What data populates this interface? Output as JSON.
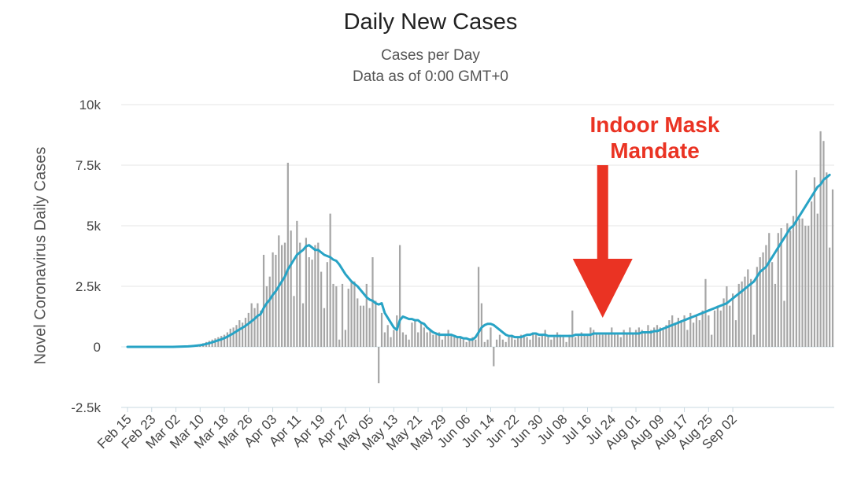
{
  "chart_data": {
    "type": "bar",
    "title": "Daily New Cases",
    "subtitle_lines": [
      "Cases per Day",
      "Data as of 0:00 GMT+0"
    ],
    "ylabel": "Novel Coronavirus Daily Cases",
    "xlabel": "",
    "ylim": [
      -2500,
      10000
    ],
    "y_ticks": [
      "-2.5k",
      "0",
      "2.5k",
      "5k",
      "7.5k",
      "10k"
    ],
    "y_tick_values": [
      -2500,
      0,
      2500,
      5000,
      7500,
      10000
    ],
    "x_ticks": [
      "Feb 15",
      "Feb 23",
      "Mar 02",
      "Mar 10",
      "Mar 18",
      "Mar 26",
      "Apr 03",
      "Apr 11",
      "Apr 19",
      "Apr 27",
      "May 05",
      "May 13",
      "May 21",
      "May 29",
      "Jun 06",
      "Jun 14",
      "Jun 22",
      "Jun 30",
      "Jul 08",
      "Jul 16",
      "Jul 24",
      "Aug 01",
      "Aug 09",
      "Aug 17",
      "Aug 25",
      "Sep 02"
    ],
    "tick_step_days": 8,
    "grid": true,
    "legend": "none",
    "colors": {
      "bars": "#a6a6a6",
      "line": "#27a3c5",
      "annotation": "#ea3323",
      "grid": "#e6e6e6",
      "zero_line": "#d8e8ee"
    },
    "annotation": {
      "text_lines": [
        "Indoor Mask",
        "Mandate"
      ],
      "x": "Jul 21"
    },
    "series": [
      {
        "type": "bar",
        "values": [
          0,
          0,
          0,
          0,
          0,
          0,
          0,
          0,
          0,
          0,
          0,
          0,
          0,
          0,
          0,
          0,
          5,
          10,
          15,
          20,
          30,
          40,
          60,
          80,
          100,
          150,
          200,
          250,
          300,
          350,
          400,
          450,
          500,
          600,
          750,
          800,
          900,
          1100,
          1000,
          1200,
          1400,
          1800,
          1600,
          1800,
          1500,
          3800,
          2500,
          2900,
          3900,
          3800,
          4600,
          4200,
          4300,
          7600,
          4800,
          2100,
          5200,
          4300,
          1800,
          4500,
          3700,
          3600,
          4200,
          4300,
          3100,
          1600,
          3500,
          5500,
          2600,
          2500,
          300,
          2600,
          700,
          2400,
          2700,
          2700,
          2000,
          1700,
          1700,
          2600,
          1600,
          3700,
          1900,
          -1500,
          1400,
          600,
          900,
          400,
          700,
          1300,
          4200,
          600,
          500,
          300,
          1000,
          1100,
          600,
          1000,
          800,
          600,
          700,
          500,
          500,
          600,
          300,
          500,
          700,
          500,
          500,
          400,
          400,
          300,
          200,
          300,
          400,
          300,
          3300,
          1800,
          200,
          300,
          800,
          -800,
          300,
          500,
          300,
          200,
          400,
          500,
          300,
          400,
          500,
          500,
          400,
          300,
          600,
          500,
          400,
          500,
          700,
          400,
          300,
          400,
          600,
          500,
          400,
          200,
          500,
          1500,
          400,
          500,
          600,
          500,
          500,
          800,
          700,
          600,
          500,
          500,
          600,
          600,
          800,
          600,
          500,
          400,
          700,
          600,
          800,
          600,
          700,
          800,
          700,
          600,
          900,
          700,
          800,
          900,
          800,
          700,
          900,
          1100,
          1300,
          1000,
          1200,
          1100,
          1300,
          700,
          1400,
          1000,
          1300,
          1100,
          1500,
          2800,
          1300,
          500,
          1500,
          1700,
          1500,
          2000,
          2500,
          1700,
          2200,
          1100,
          2600,
          2700,
          2900,
          3200,
          2800,
          500,
          3300,
          3700,
          3900,
          4200,
          4700,
          3500,
          2600,
          4700,
          4900,
          1900,
          5100,
          4800,
          5400,
          7300,
          5300,
          5300,
          5000,
          5000,
          6000,
          7000,
          5500,
          8900,
          8500,
          7200,
          4100,
          6500
        ]
      },
      {
        "type": "line",
        "name": "moving average",
        "values": [
          0,
          0,
          0,
          0,
          0,
          0,
          0,
          0,
          0,
          0,
          0,
          0,
          0,
          0,
          0,
          0,
          4,
          8,
          12,
          16,
          20,
          30,
          40,
          55,
          70,
          90,
          120,
          150,
          190,
          230,
          270,
          310,
          360,
          420,
          490,
          560,
          640,
          720,
          790,
          870,
          960,
          1060,
          1160,
          1280,
          1350,
          1600,
          1800,
          1950,
          2150,
          2300,
          2500,
          2700,
          2900,
          3200,
          3400,
          3600,
          3800,
          3900,
          4000,
          4150,
          4200,
          4100,
          4000,
          4000,
          3900,
          3800,
          3750,
          3700,
          3600,
          3550,
          3400,
          3200,
          3000,
          2850,
          2700,
          2600,
          2500,
          2350,
          2200,
          2050,
          1950,
          1900,
          1800,
          1750,
          1800,
          1400,
          1200,
          1000,
          800,
          700,
          1100,
          1250,
          1200,
          1150,
          1150,
          1100,
          1100,
          1000,
          950,
          800,
          700,
          600,
          550,
          500,
          500,
          500,
          500,
          500,
          450,
          400,
          400,
          350,
          350,
          300,
          300,
          400,
          600,
          800,
          900,
          950,
          950,
          900,
          800,
          700,
          600,
          500,
          450,
          450,
          400,
          400,
          400,
          450,
          500,
          500,
          550,
          550,
          500,
          500,
          500,
          450,
          450,
          450,
          450,
          450,
          450,
          450,
          450,
          450,
          500,
          500,
          500,
          500,
          500,
          500,
          550,
          550,
          550,
          550,
          550,
          550,
          550,
          550,
          550,
          550,
          550,
          550,
          550,
          550,
          550,
          550,
          600,
          600,
          600,
          600,
          650,
          650,
          700,
          750,
          800,
          850,
          900,
          950,
          1000,
          1050,
          1100,
          1150,
          1200,
          1250,
          1300,
          1350,
          1400,
          1450,
          1500,
          1550,
          1600,
          1650,
          1700,
          1750,
          1800,
          1900,
          2000,
          2100,
          2200,
          2300,
          2400,
          2500,
          2600,
          2700,
          2900,
          3100,
          3200,
          3300,
          3500,
          3700,
          3900,
          4100,
          4300,
          4500,
          4700,
          4900,
          5000,
          5200,
          5400,
          5600,
          5800,
          6000,
          6200,
          6400,
          6600,
          6700,
          6900,
          7000,
          7100
        ]
      }
    ]
  }
}
